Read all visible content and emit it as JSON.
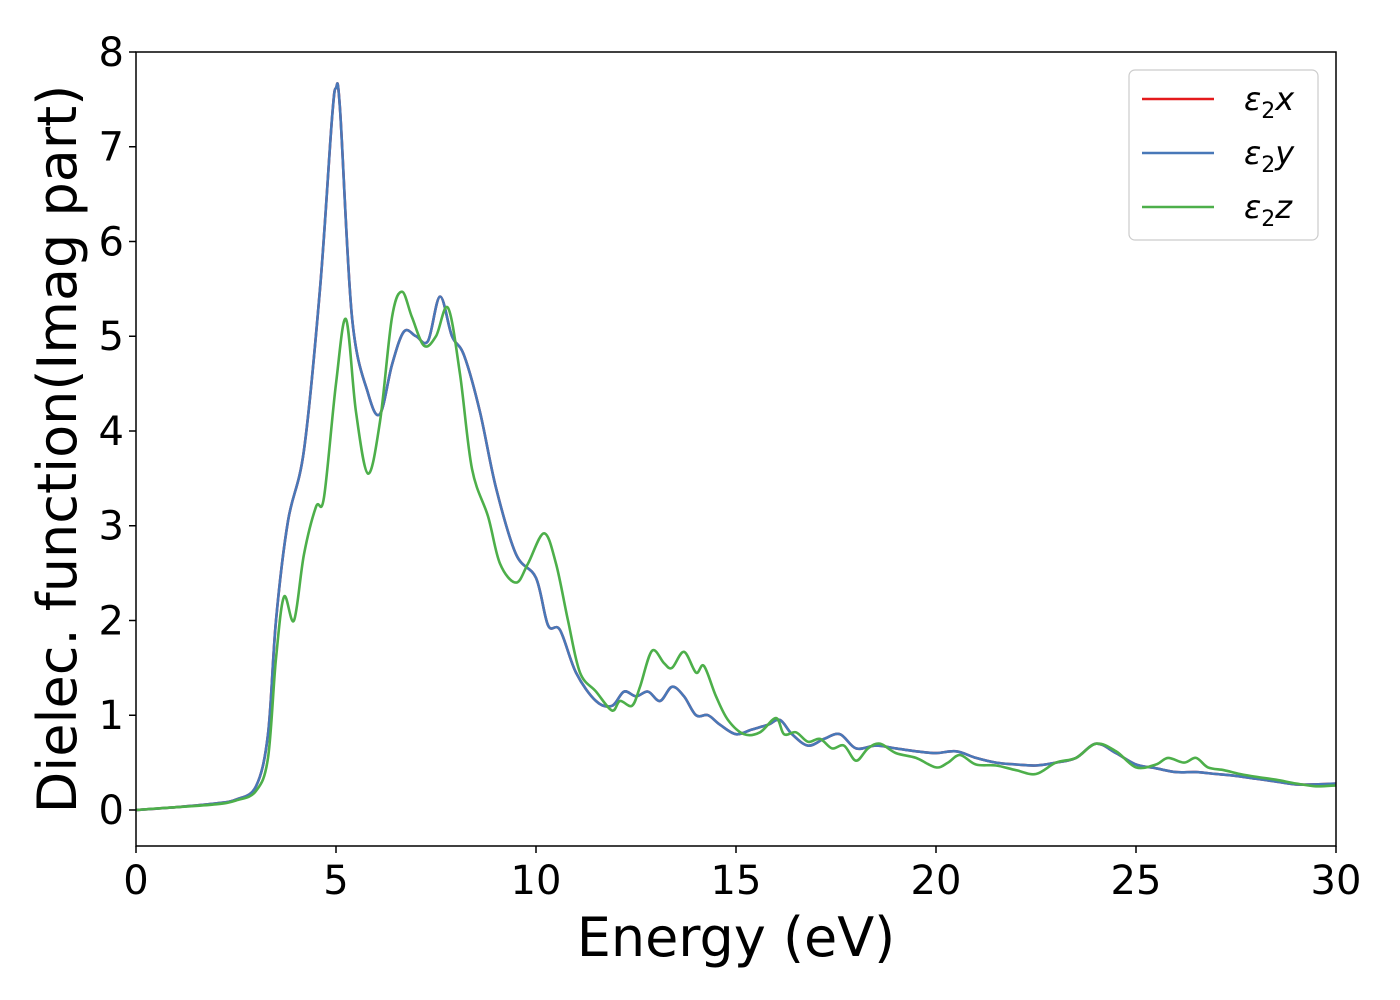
{
  "chart_data": {
    "type": "line",
    "title": "",
    "xlabel": "Energy (eV)",
    "ylabel": "Dielec. function(Imag part)",
    "xlim": [
      0,
      30
    ],
    "ylim": [
      -0.38,
      8
    ],
    "xticks": [
      "0",
      "5",
      "10",
      "15",
      "20",
      "25",
      "30"
    ],
    "yticks": [
      "0",
      "1",
      "2",
      "3",
      "4",
      "5",
      "6",
      "7",
      "8"
    ],
    "grid": false,
    "legend_position": "top-right",
    "series": [
      {
        "name": "ε2x",
        "legend_base": "ε",
        "legend_sub": "2",
        "legend_suffix": "x",
        "color": "#e41a1c",
        "x": [
          0,
          1,
          2,
          2.5,
          3.0,
          3.3,
          3.5,
          3.8,
          4.2,
          4.6,
          4.9,
          5.0,
          5.1,
          5.4,
          5.8,
          6.1,
          6.4,
          6.7,
          7.0,
          7.3,
          7.6,
          7.9,
          8.2,
          8.6,
          9.0,
          9.5,
          10.0,
          10.3,
          10.6,
          11.0,
          11.5,
          11.9,
          12.2,
          12.5,
          12.8,
          13.1,
          13.4,
          13.7,
          14.0,
          14.3,
          14.6,
          15.0,
          15.4,
          15.8,
          16.1,
          16.4,
          16.8,
          17.2,
          17.6,
          18.0,
          18.5,
          19.0,
          19.5,
          20.0,
          20.5,
          21.0,
          21.5,
          22.0,
          22.5,
          23.0,
          23.5,
          24.0,
          24.5,
          25.0,
          25.5,
          26.0,
          26.5,
          27.0,
          27.5,
          28.0,
          28.5,
          29.0,
          29.5,
          30.0
        ],
        "y": [
          0.0,
          0.03,
          0.07,
          0.11,
          0.25,
          0.8,
          2.0,
          3.05,
          3.8,
          5.5,
          7.3,
          7.62,
          7.4,
          5.2,
          4.4,
          4.18,
          4.7,
          5.05,
          5.0,
          4.95,
          5.42,
          5.0,
          4.8,
          4.2,
          3.4,
          2.7,
          2.45,
          1.95,
          1.9,
          1.45,
          1.15,
          1.1,
          1.25,
          1.2,
          1.25,
          1.15,
          1.3,
          1.2,
          1.0,
          1.0,
          0.9,
          0.8,
          0.85,
          0.9,
          0.95,
          0.8,
          0.68,
          0.75,
          0.8,
          0.65,
          0.68,
          0.65,
          0.62,
          0.6,
          0.62,
          0.55,
          0.5,
          0.48,
          0.47,
          0.5,
          0.55,
          0.7,
          0.6,
          0.48,
          0.44,
          0.4,
          0.4,
          0.38,
          0.36,
          0.33,
          0.3,
          0.27,
          0.27,
          0.28
        ]
      },
      {
        "name": "ε2y",
        "legend_base": "ε",
        "legend_sub": "2",
        "legend_suffix": "y",
        "color": "#4878b8",
        "x": [
          0,
          1,
          2,
          2.5,
          3.0,
          3.3,
          3.5,
          3.8,
          4.2,
          4.6,
          4.9,
          5.0,
          5.1,
          5.4,
          5.8,
          6.1,
          6.4,
          6.7,
          7.0,
          7.3,
          7.6,
          7.9,
          8.2,
          8.6,
          9.0,
          9.5,
          10.0,
          10.3,
          10.6,
          11.0,
          11.5,
          11.9,
          12.2,
          12.5,
          12.8,
          13.1,
          13.4,
          13.7,
          14.0,
          14.3,
          14.6,
          15.0,
          15.4,
          15.8,
          16.1,
          16.4,
          16.8,
          17.2,
          17.6,
          18.0,
          18.5,
          19.0,
          19.5,
          20.0,
          20.5,
          21.0,
          21.5,
          22.0,
          22.5,
          23.0,
          23.5,
          24.0,
          24.5,
          25.0,
          25.5,
          26.0,
          26.5,
          27.0,
          27.5,
          28.0,
          28.5,
          29.0,
          29.5,
          30.0
        ],
        "y": [
          0.0,
          0.03,
          0.07,
          0.11,
          0.25,
          0.8,
          2.0,
          3.05,
          3.8,
          5.5,
          7.3,
          7.62,
          7.4,
          5.2,
          4.4,
          4.18,
          4.7,
          5.05,
          5.0,
          4.95,
          5.42,
          5.0,
          4.8,
          4.2,
          3.4,
          2.7,
          2.45,
          1.95,
          1.9,
          1.45,
          1.15,
          1.1,
          1.25,
          1.2,
          1.25,
          1.15,
          1.3,
          1.2,
          1.0,
          1.0,
          0.9,
          0.8,
          0.85,
          0.9,
          0.95,
          0.8,
          0.68,
          0.75,
          0.8,
          0.65,
          0.68,
          0.65,
          0.62,
          0.6,
          0.62,
          0.55,
          0.5,
          0.48,
          0.47,
          0.5,
          0.55,
          0.7,
          0.6,
          0.48,
          0.44,
          0.4,
          0.4,
          0.38,
          0.36,
          0.33,
          0.3,
          0.27,
          0.27,
          0.28
        ]
      },
      {
        "name": "ε2z",
        "legend_base": "ε",
        "legend_sub": "2",
        "legend_suffix": "z",
        "color": "#4daf4a",
        "x": [
          0,
          1,
          2,
          2.5,
          3.0,
          3.3,
          3.5,
          3.7,
          3.95,
          4.2,
          4.5,
          4.7,
          5.0,
          5.25,
          5.5,
          5.8,
          6.1,
          6.4,
          6.65,
          6.9,
          7.2,
          7.5,
          7.8,
          8.1,
          8.4,
          8.8,
          9.1,
          9.5,
          9.8,
          10.2,
          10.5,
          10.8,
          11.1,
          11.5,
          11.9,
          12.1,
          12.4,
          12.6,
          12.9,
          13.2,
          13.4,
          13.7,
          14.0,
          14.2,
          14.5,
          14.8,
          15.2,
          15.6,
          16.0,
          16.2,
          16.5,
          16.8,
          17.1,
          17.4,
          17.7,
          18.0,
          18.3,
          18.6,
          19.0,
          19.5,
          20.0,
          20.3,
          20.6,
          21.0,
          21.5,
          22.0,
          22.5,
          23.0,
          23.5,
          24.0,
          24.5,
          25.0,
          25.5,
          25.8,
          26.2,
          26.5,
          26.8,
          27.2,
          27.6,
          28.0,
          28.5,
          29.0,
          29.5,
          30.0
        ],
        "y": [
          0.0,
          0.03,
          0.06,
          0.1,
          0.2,
          0.55,
          1.6,
          2.25,
          2.0,
          2.7,
          3.2,
          3.3,
          4.5,
          5.18,
          4.2,
          3.55,
          4.1,
          5.2,
          5.47,
          5.2,
          4.9,
          5.0,
          5.3,
          4.6,
          3.6,
          3.1,
          2.6,
          2.4,
          2.6,
          2.92,
          2.6,
          2.0,
          1.45,
          1.25,
          1.05,
          1.15,
          1.1,
          1.3,
          1.68,
          1.55,
          1.5,
          1.67,
          1.45,
          1.52,
          1.2,
          0.95,
          0.8,
          0.82,
          0.97,
          0.8,
          0.82,
          0.72,
          0.75,
          0.65,
          0.68,
          0.52,
          0.65,
          0.7,
          0.6,
          0.55,
          0.45,
          0.5,
          0.58,
          0.48,
          0.47,
          0.42,
          0.38,
          0.5,
          0.55,
          0.7,
          0.62,
          0.45,
          0.48,
          0.55,
          0.5,
          0.55,
          0.45,
          0.42,
          0.38,
          0.35,
          0.32,
          0.28,
          0.25,
          0.26
        ]
      }
    ]
  }
}
